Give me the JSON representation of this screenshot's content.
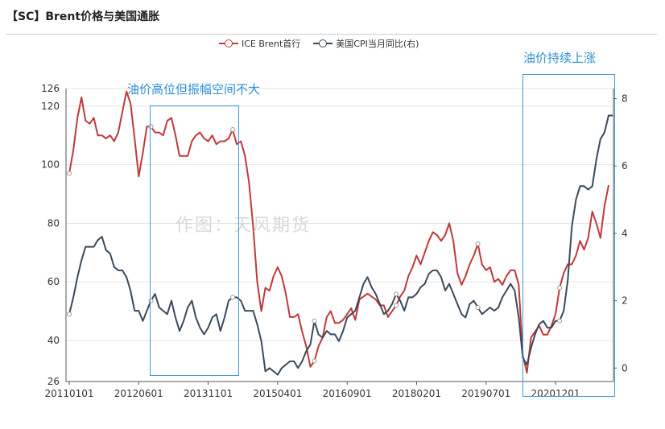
{
  "title": "【SC】Brent价格与美国通胀",
  "watermark": "作图：天风期货",
  "annotations": {
    "a1": "油价高位但振幅空间不大",
    "a2": "油价持续上涨"
  },
  "colors": {
    "brent": "#c0393b",
    "cpi": "#3a4a5c",
    "annotation": "#2e8fd3",
    "grid": "#e0e0e0"
  },
  "chart_data": {
    "type": "line",
    "title": "【SC】Brent价格与美国通胀",
    "legend_position": "top",
    "grid": true,
    "x_ticks": [
      "20110101",
      "20120601",
      "20131101",
      "20150401",
      "20160901",
      "20180201",
      "20190701",
      "20201201"
    ],
    "y_left": {
      "ticks": [
        26,
        40,
        60,
        80,
        100,
        120,
        126
      ],
      "range": [
        26,
        126
      ]
    },
    "y_right": {
      "ticks": [
        0,
        2,
        4,
        6,
        8
      ],
      "range": [
        -0.4,
        8.3
      ]
    },
    "series": [
      {
        "name": "ICE Brent首行",
        "axis": "left",
        "color": "#c0393b",
        "start": "2011-01",
        "frequency": "monthly",
        "values": [
          97,
          105,
          116,
          123,
          115,
          114,
          116,
          110,
          110,
          109,
          110,
          108,
          111,
          118,
          125,
          121,
          109,
          96,
          104,
          113,
          113,
          111,
          111,
          110,
          115,
          116,
          110,
          103,
          103,
          103,
          108,
          110,
          111,
          109,
          108,
          110,
          107,
          108,
          108,
          109,
          112,
          107,
          108,
          103,
          94,
          79,
          60,
          50,
          58,
          57,
          62,
          65,
          62,
          56,
          48,
          48,
          49,
          43,
          38,
          31,
          33,
          38,
          41,
          48,
          50,
          46,
          46,
          47,
          49,
          51,
          47,
          54,
          55,
          56,
          55,
          54,
          52,
          52,
          48,
          50,
          52,
          55,
          57,
          62,
          65,
          69,
          66,
          70,
          74,
          77,
          76,
          74,
          76,
          80,
          74,
          63,
          59,
          62,
          66,
          69,
          73,
          66,
          64,
          65,
          60,
          61,
          59,
          62,
          64,
          64,
          59,
          35,
          29,
          41,
          43,
          45,
          42,
          42,
          45,
          49,
          58,
          63,
          66,
          66,
          69,
          74,
          71,
          75,
          84,
          80,
          75,
          86,
          93
        ]
      },
      {
        "name": "美国CPI当月同比(右)",
        "axis": "right",
        "color": "#3a4a5c",
        "start": "2011-01",
        "frequency": "monthly",
        "values": [
          1.6,
          2.1,
          2.7,
          3.2,
          3.6,
          3.6,
          3.6,
          3.8,
          3.9,
          3.5,
          3.4,
          3.0,
          2.9,
          2.9,
          2.7,
          2.3,
          1.7,
          1.7,
          1.4,
          1.7,
          2.0,
          2.2,
          1.8,
          1.7,
          1.6,
          2.0,
          1.5,
          1.1,
          1.4,
          1.8,
          2.0,
          1.5,
          1.2,
          1.0,
          1.2,
          1.5,
          1.6,
          1.1,
          1.5,
          2.0,
          2.1,
          2.1,
          2.0,
          1.7,
          1.7,
          1.7,
          1.3,
          0.8,
          -0.1,
          0.0,
          -0.1,
          -0.2,
          0.0,
          0.1,
          0.2,
          0.2,
          0.0,
          0.2,
          0.5,
          0.7,
          1.4,
          1.0,
          0.9,
          1.1,
          1.0,
          1.0,
          0.8,
          1.1,
          1.5,
          1.6,
          1.7,
          2.1,
          2.5,
          2.7,
          2.4,
          2.2,
          1.9,
          1.6,
          1.7,
          1.9,
          2.2,
          2.0,
          1.7,
          2.1,
          2.1,
          2.2,
          2.4,
          2.5,
          2.8,
          2.9,
          2.9,
          2.7,
          2.3,
          2.5,
          2.2,
          1.9,
          1.6,
          1.5,
          1.9,
          2.0,
          1.8,
          1.6,
          1.7,
          1.8,
          1.7,
          1.8,
          2.1,
          2.3,
          2.5,
          2.3,
          1.5,
          0.3,
          0.1,
          0.6,
          1.0,
          1.3,
          1.4,
          1.2,
          1.2,
          1.4,
          1.4,
          1.7,
          2.6,
          4.2,
          5.0,
          5.4,
          5.4,
          5.3,
          5.4,
          6.2,
          6.8,
          7.0,
          7.5,
          7.5
        ]
      }
    ]
  }
}
